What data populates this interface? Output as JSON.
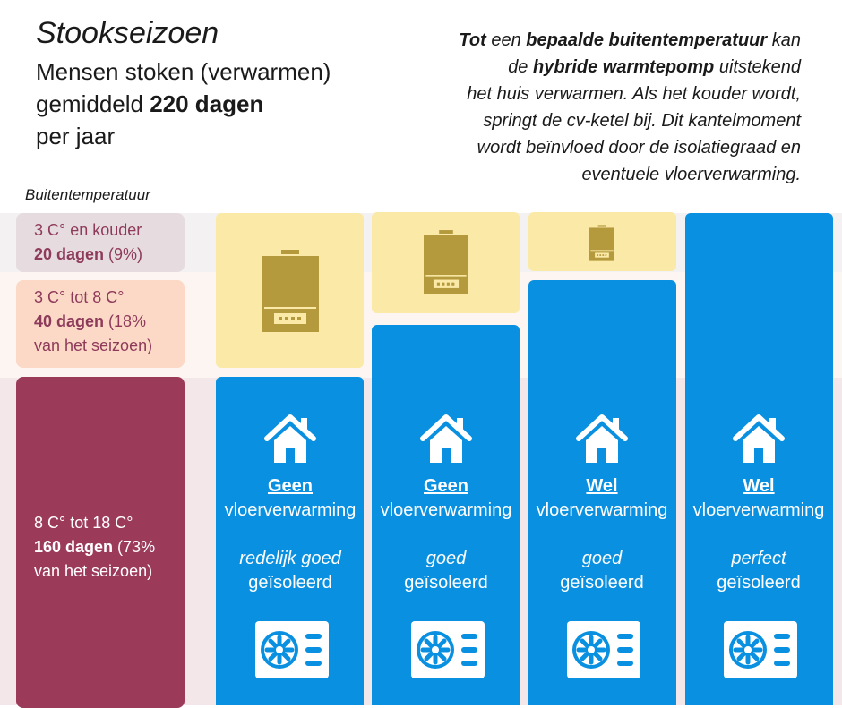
{
  "header": {
    "title": "Stookseizoen",
    "subtitle_line1": "Mensen stoken (verwarmen)",
    "subtitle_line2_pre": "gemiddeld ",
    "subtitle_line2_bold": "220 dagen",
    "subtitle_line3": "per jaar"
  },
  "note": {
    "l1_b1": "Tot",
    "l1_t1": " een ",
    "l1_b2": "bepaalde buitentemperatuur",
    "l1_t2": " kan",
    "l2_t1": "de ",
    "l2_b1": "hybride warmtepomp",
    "l2_t2": " uitstekend",
    "l3": "het huis verwarmen. Als het kouder wordt,",
    "l4": "springt de cv-ketel bij. Dit kantelmoment",
    "l5": "wordt beïnvloed door de isolatiegraad en",
    "l6": "eventuele vloerverwarming."
  },
  "axis_label": "Buitentemperatuur",
  "categories": [
    {
      "range": "3 C° en kouder",
      "days": "20 dagen",
      "share": " (9%)"
    },
    {
      "range": "3 C° tot 8 C°",
      "days": "40 dagen",
      "share_a": " (18%",
      "share_b": "van het seizoen)"
    },
    {
      "range": "8 C°  tot 18 C°",
      "days": "160 dagen",
      "share_a": " (73%",
      "share_b": "van het seizoen)"
    }
  ],
  "columns": [
    {
      "floor": "Geen",
      "floor_label": "vloerverwarming",
      "insulation": "redelijk goed",
      "insulated": "geïsoleerd"
    },
    {
      "floor": "Geen",
      "floor_label": "vloerverwarming",
      "insulation": "goed",
      "insulated": "geïsoleerd"
    },
    {
      "floor": "Wel",
      "floor_label": "vloerverwarming",
      "insulation": "goed",
      "insulated": "geïsoleerd"
    },
    {
      "floor": "Wel",
      "floor_label": "vloerverwarming",
      "insulation": "perfect",
      "insulated": "geïsoleerd"
    }
  ],
  "colors": {
    "boiler": "#b49a3d",
    "heatpump_blue": "#0a90e0",
    "bar_yellow": "#fbe9a7",
    "category_dark": "#9c3a5a"
  },
  "icons": [
    "boiler-icon",
    "house-icon",
    "heat-pump-icon"
  ]
}
